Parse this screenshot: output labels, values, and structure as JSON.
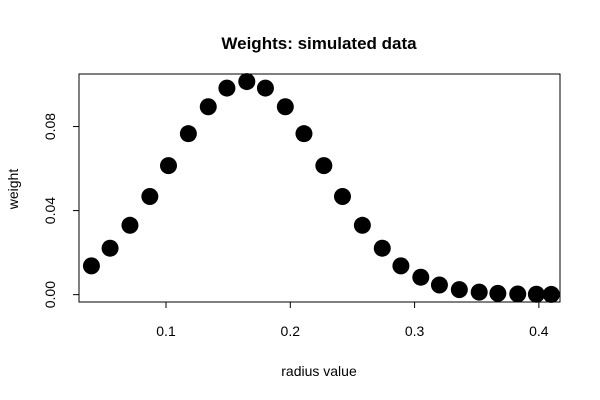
{
  "chart_data": {
    "type": "scatter",
    "title": "Weights: simulated data",
    "xlabel": "radius value",
    "ylabel": "weight",
    "xlim": [
      0.03,
      0.417
    ],
    "ylim": [
      -0.0035,
      0.105
    ],
    "xticks": [
      0.1,
      0.2,
      0.3,
      0.4
    ],
    "xtick_labels": [
      "0.1",
      "0.2",
      "0.3",
      "0.4"
    ],
    "yticks": [
      0.0,
      0.04,
      0.08
    ],
    "ytick_labels": [
      "0.00",
      "0.04",
      "0.08"
    ],
    "grid": false,
    "legend": "none",
    "marker_color": "#000000",
    "series": [
      {
        "x": [
          0.04,
          0.055,
          0.071,
          0.087,
          0.102,
          0.118,
          0.134,
          0.149,
          0.165,
          0.18,
          0.196,
          0.211,
          0.227,
          0.242,
          0.258,
          0.274,
          0.289,
          0.305,
          0.32,
          0.336,
          0.352,
          0.367,
          0.383,
          0.398,
          0.41
        ],
        "y": [
          0.0137,
          0.0221,
          0.033,
          0.0467,
          0.0614,
          0.0766,
          0.0894,
          0.0983,
          0.1014,
          0.0983,
          0.0894,
          0.0766,
          0.0614,
          0.0467,
          0.033,
          0.0221,
          0.0137,
          0.0083,
          0.0046,
          0.0024,
          0.0012,
          0.0006,
          0.0003,
          0.0002,
          0.0001
        ]
      }
    ]
  }
}
